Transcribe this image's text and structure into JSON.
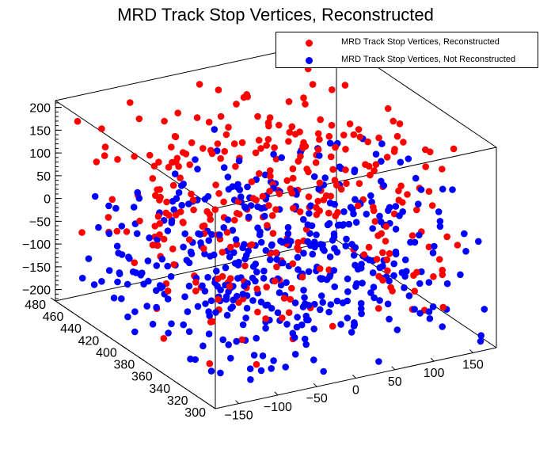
{
  "chart_data": {
    "type": "scatter",
    "title": "MRD Track Stop Vertices, Reconstructed",
    "axes": {
      "x": {
        "range": [
          -180,
          180
        ],
        "ticks": [
          -150,
          -100,
          -50,
          0,
          50,
          100,
          150
        ]
      },
      "y": {
        "range": [
          300,
          480
        ],
        "ticks": [
          300,
          320,
          340,
          360,
          380,
          400,
          420,
          440,
          460,
          480
        ]
      },
      "z": {
        "range": [
          -225,
          215
        ],
        "ticks": [
          -200,
          -150,
          -100,
          -50,
          0,
          50,
          100,
          150,
          200
        ]
      }
    },
    "legend": {
      "position": "top-right"
    },
    "series": [
      {
        "name": "MRD Track Stop Vertices, Reconstructed",
        "color": "#ff0000",
        "generator": {
          "seed": 11,
          "count": 330,
          "x": [
            -170,
            170
          ],
          "y": [
            310,
            480
          ],
          "z": [
            -200,
            205
          ],
          "z_bias": 0.55
        }
      },
      {
        "name": "MRD Track Stop Vertices, Not Reconstructed",
        "color": "#0000ff",
        "generator": {
          "seed": 29,
          "count": 470,
          "x": [
            -170,
            170
          ],
          "y": [
            300,
            470
          ],
          "z": [
            -210,
            120
          ],
          "z_bias": -0.45
        }
      }
    ]
  }
}
